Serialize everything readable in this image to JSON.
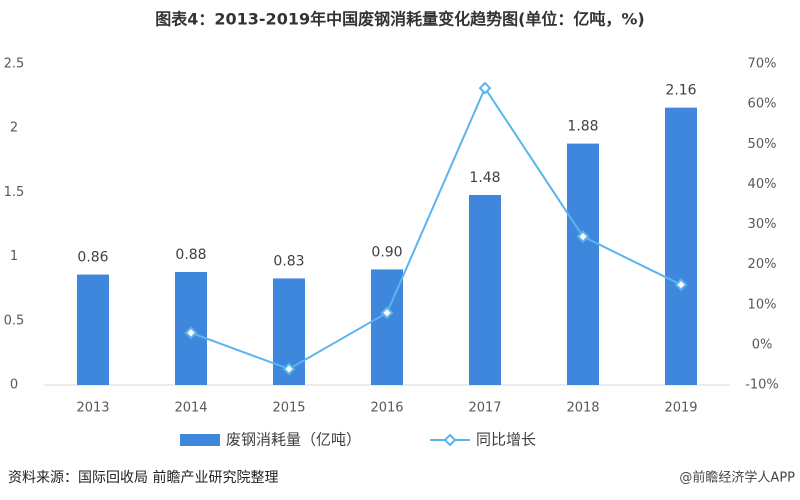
{
  "chart_data": {
    "type": "bar-line",
    "title": "图表4：2013-2019年中国废钢消耗量变化趋势图(单位：亿吨，%)",
    "categories": [
      "2013",
      "2014",
      "2015",
      "2016",
      "2017",
      "2018",
      "2019"
    ],
    "series": [
      {
        "name": "废钢消耗量（亿吨）",
        "type": "bar",
        "color": "#3f87dc",
        "values": [
          0.86,
          0.88,
          0.83,
          0.9,
          1.48,
          1.88,
          2.16
        ],
        "value_labels": [
          "0.86",
          "0.88",
          "0.83",
          "0.90",
          "1.48",
          "1.88",
          "2.16"
        ]
      },
      {
        "name": "同比增长",
        "type": "line",
        "color": "#5ab4ee",
        "axis": "y2",
        "values": [
          null,
          3,
          -6,
          8,
          64,
          27,
          15
        ]
      }
    ],
    "ylim": [
      0,
      2.5
    ],
    "yticks": [
      0,
      0.5,
      1,
      1.5,
      2,
      2.5
    ],
    "y2lim": [
      -10,
      70
    ],
    "y2ticks": [
      {
        "value": -10,
        "label": "-10%"
      },
      {
        "value": 0,
        "label": "0%"
      },
      {
        "value": 10,
        "label": "10%"
      },
      {
        "value": 20,
        "label": "20%"
      },
      {
        "value": 30,
        "label": "30%"
      },
      {
        "value": 40,
        "label": "40%"
      },
      {
        "value": 50,
        "label": "50%"
      },
      {
        "value": 60,
        "label": "60%"
      },
      {
        "value": 70,
        "label": "70%"
      }
    ],
    "source": "资料来源：国际回收局 前瞻产业研究院整理",
    "credit": "@前瞻经济学人APP"
  }
}
